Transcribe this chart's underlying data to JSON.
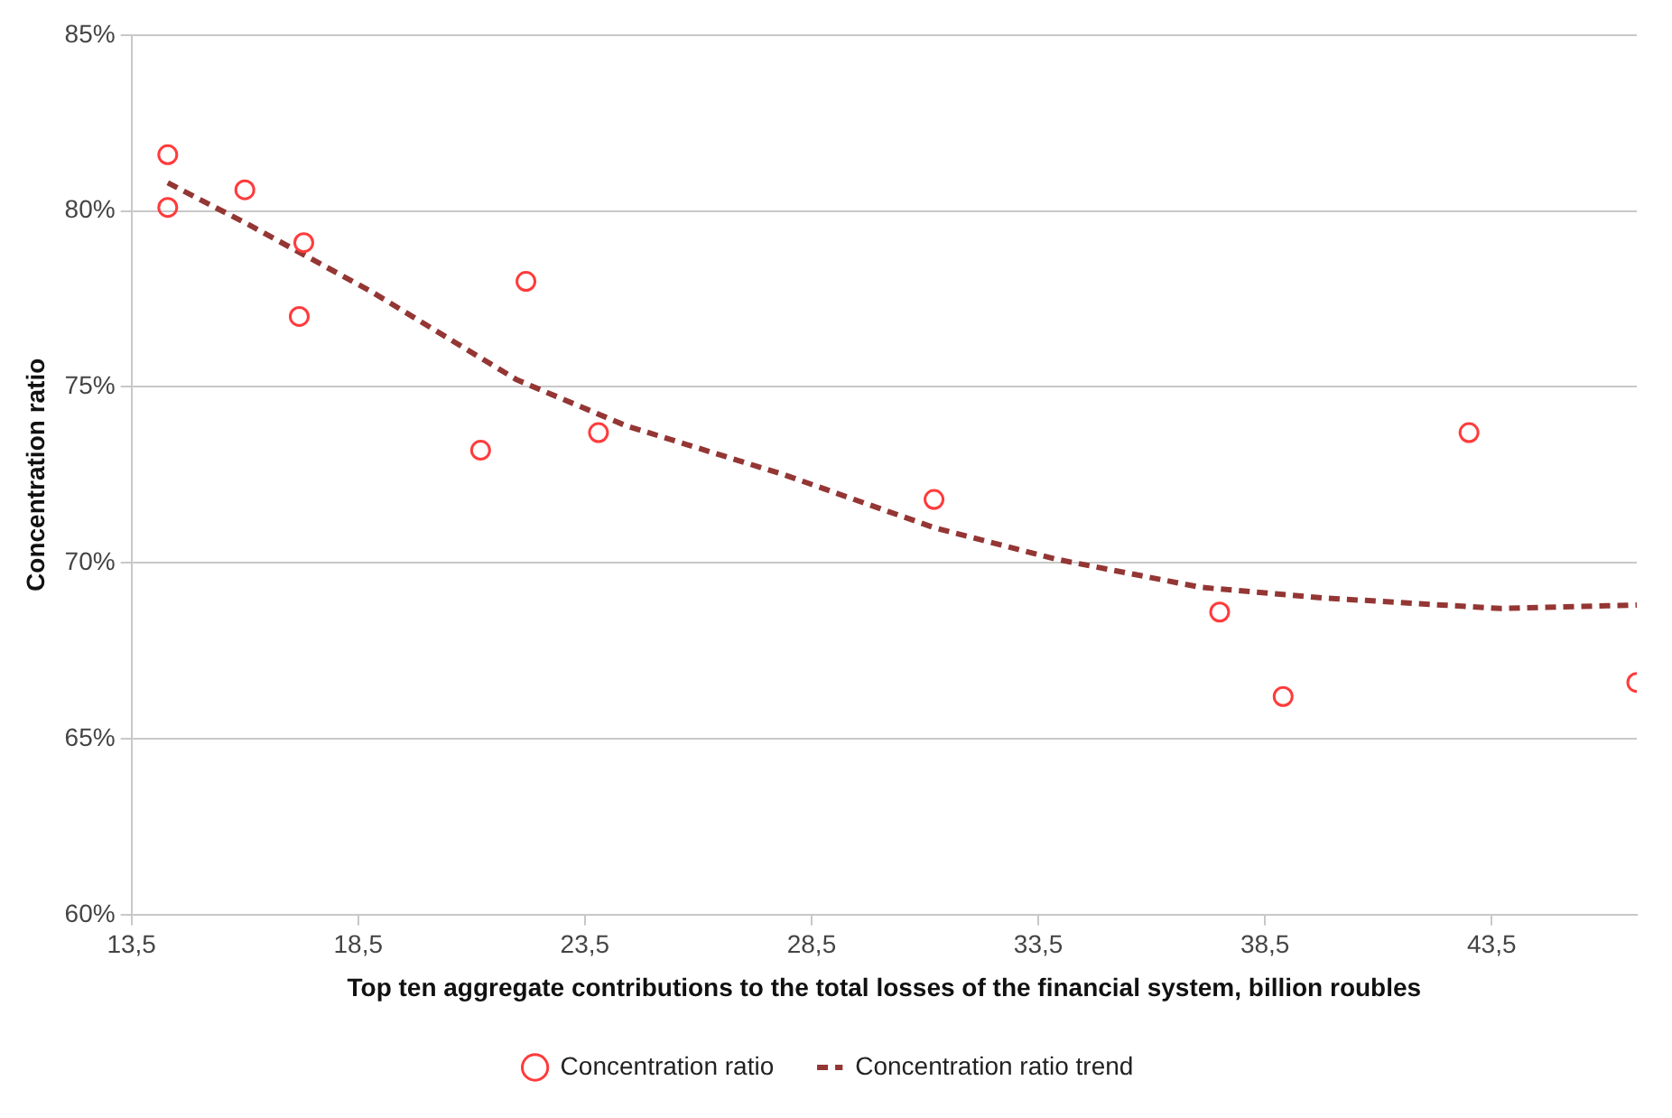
{
  "chart_data": {
    "type": "scatter",
    "xlabel": "Top ten aggregate contributions to the total losses of the financial system, billion roubles",
    "ylabel": "Concentration ratio",
    "xlim": [
      13.5,
      46.7
    ],
    "xticks": [
      {
        "value": 13.5,
        "label": "13,5"
      },
      {
        "value": 18.5,
        "label": "18,5"
      },
      {
        "value": 23.5,
        "label": "23,5"
      },
      {
        "value": 28.5,
        "label": "28,5"
      },
      {
        "value": 33.5,
        "label": "33,5"
      },
      {
        "value": 38.5,
        "label": "38,5"
      },
      {
        "value": 43.5,
        "label": "43,5"
      }
    ],
    "ylim": [
      60,
      85
    ],
    "yticks": [
      {
        "value": 60,
        "label": "60%"
      },
      {
        "value": 65,
        "label": "65%"
      },
      {
        "value": 70,
        "label": "70%"
      },
      {
        "value": 75,
        "label": "75%"
      },
      {
        "value": 80,
        "label": "80%"
      },
      {
        "value": 85,
        "label": "85%"
      }
    ],
    "grid": "y",
    "legend": "bottom",
    "series": [
      {
        "name": "Concentration ratio",
        "type": "scatter",
        "marker": "circle",
        "color": "#ff3b3b",
        "x": [
          14.3,
          14.3,
          16.0,
          17.3,
          17.2,
          22.2,
          21.2,
          23.8,
          31.2,
          37.5,
          38.9,
          43.0,
          46.7
        ],
        "values": [
          81.6,
          80.1,
          80.6,
          79.1,
          77.0,
          78.0,
          73.2,
          73.7,
          71.8,
          68.6,
          66.2,
          73.7,
          66.6
        ]
      },
      {
        "name": "Concentration ratio trend",
        "type": "line",
        "marker": "none",
        "line_style": "dashed",
        "color": "#943634",
        "x": [
          14.3,
          16.1,
          18.8,
          22.0,
          24.4,
          27.9,
          31.2,
          33.9,
          37.1,
          39.8,
          42.4,
          43.7,
          46.7
        ],
        "values": [
          80.8,
          79.6,
          77.7,
          75.2,
          73.9,
          72.5,
          71.0,
          70.1,
          69.3,
          69.0,
          68.8,
          68.7,
          68.8
        ]
      }
    ]
  }
}
